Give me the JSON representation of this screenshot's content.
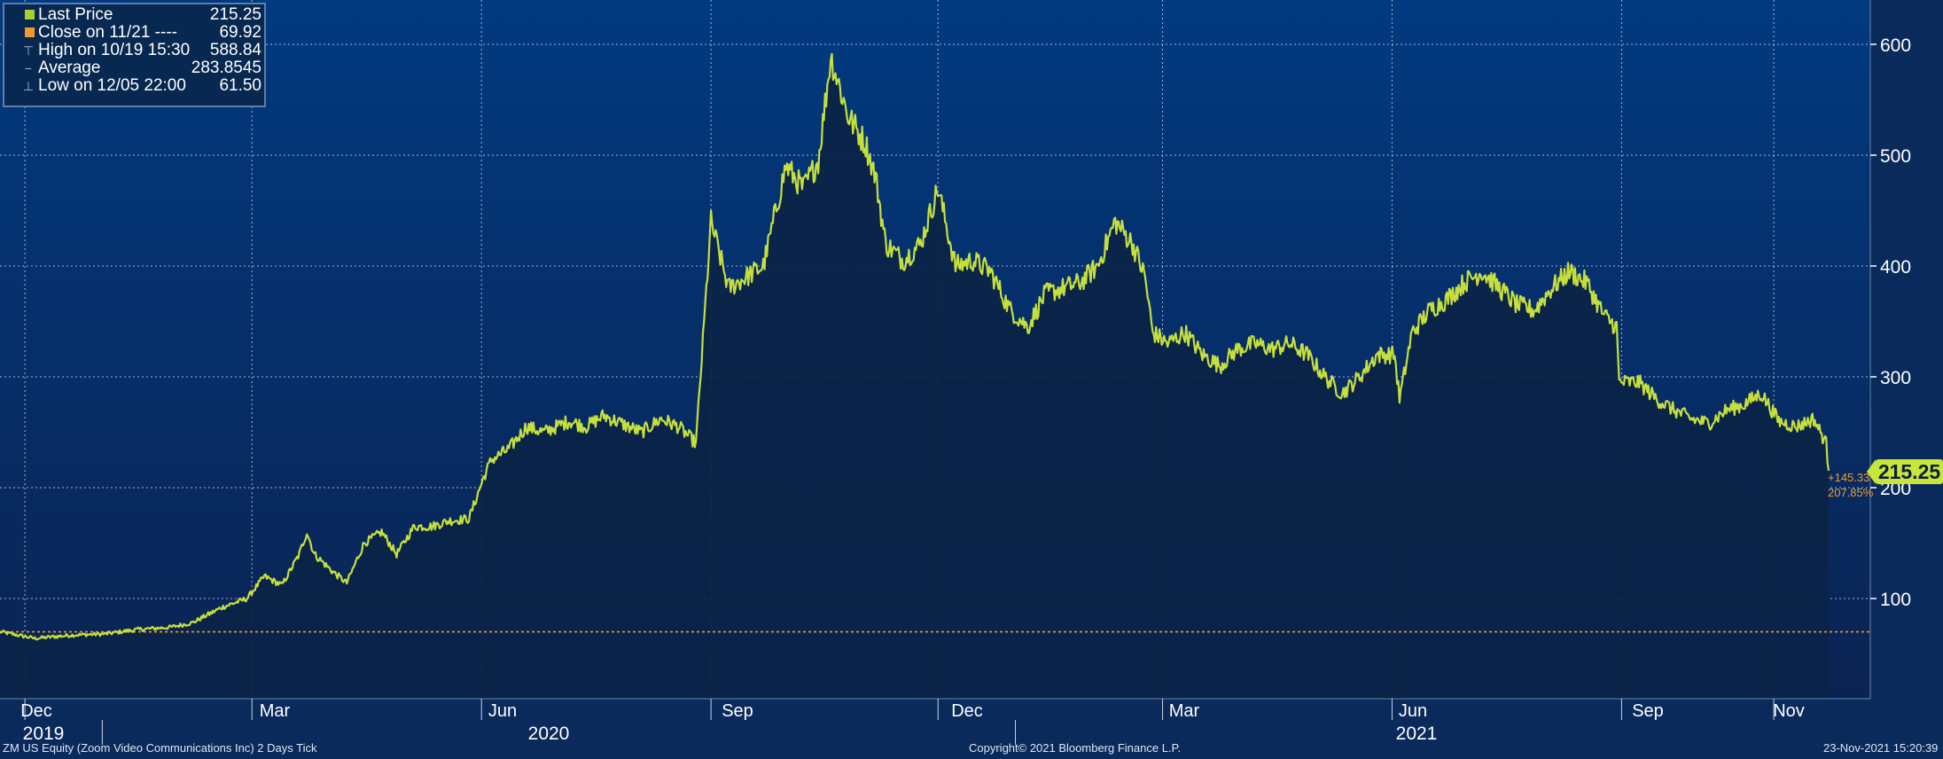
{
  "chart_data": {
    "type": "area",
    "security": "ZM US Equity (Zoom Video Communications Inc) 2 Days  Tick",
    "y_ticks": [
      100,
      200,
      300,
      400,
      500,
      600
    ],
    "ylim": [
      40,
      640
    ],
    "x_tick_labels": [
      "Dec",
      "Mar",
      "Jun",
      "Sep",
      "Dec",
      "Mar",
      "Jun",
      "Sep",
      "Nov"
    ],
    "x_year_labels": [
      "2019",
      "2020",
      "2021"
    ],
    "grid": true,
    "legend_position": "top-left",
    "legend": [
      {
        "label": "Last Price",
        "value": "215.25",
        "marker": "square",
        "color": "#a6d22c"
      },
      {
        "label": "Close on 11/21 ----",
        "value": "69.92",
        "marker": "square",
        "color": "#f29a2e"
      },
      {
        "label": "High on 10/19 15:30",
        "value": "588.84",
        "marker": "high-marker"
      },
      {
        "label": "Average",
        "value": "283.8545",
        "marker": "average-marker"
      },
      {
        "label": "Low on 12/05 22:00",
        "value": "61.50",
        "marker": "low-marker"
      }
    ],
    "reference_line": {
      "label": "Close on 11/21",
      "value": 69.92,
      "color": "#f29a2e"
    },
    "last_value_badge": "215.25",
    "change_abs": "+145.33",
    "change_pct": "207.85%",
    "series": [
      {
        "name": "Last Price",
        "color": "#c6df3d",
        "points": [
          [
            "2019-11-21",
            70.0
          ],
          [
            "2019-12-05",
            64.0
          ],
          [
            "2019-12-20",
            67.0
          ],
          [
            "2020-01-02",
            68.0
          ],
          [
            "2020-01-15",
            72.0
          ],
          [
            "2020-01-28",
            74.0
          ],
          [
            "2020-02-06",
            78.0
          ],
          [
            "2020-02-18",
            92.0
          ],
          [
            "2020-02-28",
            100.0
          ],
          [
            "2020-03-06",
            120.0
          ],
          [
            "2020-03-13",
            112.0
          ],
          [
            "2020-03-20",
            140.0
          ],
          [
            "2020-03-23",
            160.0
          ],
          [
            "2020-03-26",
            140.0
          ],
          [
            "2020-04-02",
            125.0
          ],
          [
            "2020-04-08",
            114.0
          ],
          [
            "2020-04-15",
            150.0
          ],
          [
            "2020-04-22",
            160.0
          ],
          [
            "2020-04-28",
            140.0
          ],
          [
            "2020-05-05",
            165.0
          ],
          [
            "2020-05-12",
            165.0
          ],
          [
            "2020-05-19",
            170.0
          ],
          [
            "2020-05-27",
            172.0
          ],
          [
            "2020-06-02",
            210.0
          ],
          [
            "2020-06-05",
            225.0
          ],
          [
            "2020-06-12",
            235.0
          ],
          [
            "2020-06-19",
            255.0
          ],
          [
            "2020-06-26",
            250.0
          ],
          [
            "2020-07-06",
            260.0
          ],
          [
            "2020-07-13",
            255.0
          ],
          [
            "2020-07-20",
            265.0
          ],
          [
            "2020-07-27",
            258.0
          ],
          [
            "2020-08-04",
            250.0
          ],
          [
            "2020-08-12",
            262.0
          ],
          [
            "2020-08-19",
            255.0
          ],
          [
            "2020-08-26",
            240.0
          ],
          [
            "2020-09-01",
            440.0
          ],
          [
            "2020-09-08",
            380.0
          ],
          [
            "2020-09-15",
            390.0
          ],
          [
            "2020-09-22",
            400.0
          ],
          [
            "2020-10-01",
            490.0
          ],
          [
            "2020-10-08",
            470.0
          ],
          [
            "2020-10-14",
            495.0
          ],
          [
            "2020-10-19",
            588.84
          ],
          [
            "2020-10-26",
            535.0
          ],
          [
            "2020-11-02",
            510.0
          ],
          [
            "2020-11-06",
            480.0
          ],
          [
            "2020-11-10",
            420.0
          ],
          [
            "2020-11-17",
            405.0
          ],
          [
            "2020-11-24",
            420.0
          ],
          [
            "2020-12-01",
            470.0
          ],
          [
            "2020-12-08",
            400.0
          ],
          [
            "2020-12-15",
            405.0
          ],
          [
            "2020-12-22",
            395.0
          ],
          [
            "2020-12-30",
            360.0
          ],
          [
            "2021-01-06",
            345.0
          ],
          [
            "2021-01-13",
            375.0
          ],
          [
            "2021-01-20",
            380.0
          ],
          [
            "2021-01-27",
            385.0
          ],
          [
            "2021-02-03",
            400.0
          ],
          [
            "2021-02-10",
            440.0
          ],
          [
            "2021-02-17",
            420.0
          ],
          [
            "2021-02-22",
            390.0
          ],
          [
            "2021-02-25",
            340.0
          ],
          [
            "2021-03-03",
            330.0
          ],
          [
            "2021-03-10",
            340.0
          ],
          [
            "2021-03-17",
            320.0
          ],
          [
            "2021-03-24",
            310.0
          ],
          [
            "2021-03-31",
            325.0
          ],
          [
            "2021-04-07",
            330.0
          ],
          [
            "2021-04-14",
            325.0
          ],
          [
            "2021-04-21",
            330.0
          ],
          [
            "2021-04-28",
            320.0
          ],
          [
            "2021-05-05",
            300.0
          ],
          [
            "2021-05-12",
            285.0
          ],
          [
            "2021-05-19",
            300.0
          ],
          [
            "2021-05-26",
            320.0
          ],
          [
            "2021-06-02",
            320.0
          ],
          [
            "2021-06-04",
            280.0
          ],
          [
            "2021-06-09",
            340.0
          ],
          [
            "2021-06-16",
            360.0
          ],
          [
            "2021-06-23",
            370.0
          ],
          [
            "2021-06-30",
            385.0
          ],
          [
            "2021-07-07",
            395.0
          ],
          [
            "2021-07-14",
            380.0
          ],
          [
            "2021-07-21",
            365.0
          ],
          [
            "2021-07-28",
            360.0
          ],
          [
            "2021-08-04",
            380.0
          ],
          [
            "2021-08-11",
            395.0
          ],
          [
            "2021-08-18",
            385.0
          ],
          [
            "2021-08-25",
            355.0
          ],
          [
            "2021-08-30",
            345.0
          ],
          [
            "2021-08-31",
            295.0
          ],
          [
            "2021-09-08",
            295.0
          ],
          [
            "2021-09-15",
            280.0
          ],
          [
            "2021-09-22",
            270.0
          ],
          [
            "2021-09-29",
            262.0
          ],
          [
            "2021-10-06",
            258.0
          ],
          [
            "2021-10-13",
            270.0
          ],
          [
            "2021-10-20",
            275.0
          ],
          [
            "2021-10-27",
            285.0
          ],
          [
            "2021-11-03",
            260.0
          ],
          [
            "2021-11-10",
            255.0
          ],
          [
            "2021-11-17",
            262.0
          ],
          [
            "2021-11-22",
            240.0
          ],
          [
            "2021-11-23",
            215.25
          ]
        ]
      }
    ]
  },
  "footer": {
    "left": "ZM US Equity (Zoom Video Communications Inc) 2 Days  Tick",
    "center": "Copyright© 2021 Bloomberg Finance L.P.",
    "right": "23-Nov-2021 15:20:39"
  }
}
